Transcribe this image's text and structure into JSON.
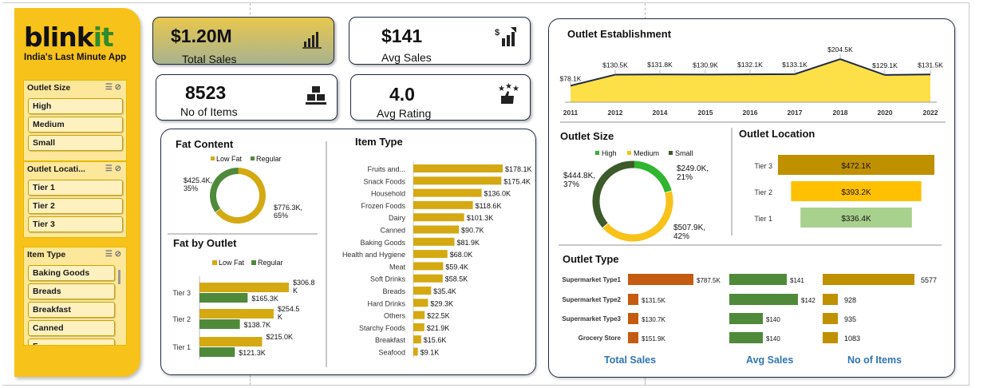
{
  "brand": {
    "name_a": "blink",
    "name_b": "it",
    "tagline": "India's Last Minute App"
  },
  "slicers": {
    "outlet_size": {
      "title": "Outlet Size",
      "items": [
        "High",
        "Medium",
        "Small"
      ]
    },
    "outlet_location": {
      "title": "Outlet Locati...",
      "items": [
        "Tier 1",
        "Tier 2",
        "Tier 3"
      ]
    },
    "item_type": {
      "title": "Item Type",
      "items": [
        "Baking Goods",
        "Breads",
        "Breakfast",
        "Canned",
        "F..."
      ]
    }
  },
  "kpis": {
    "total_sales": {
      "value": "$1.20M",
      "label": "Total Sales"
    },
    "avg_sales": {
      "value": "$141",
      "label": "Avg Sales"
    },
    "no_items": {
      "value": "8523",
      "label": "No of Items"
    },
    "avg_rating": {
      "value": "4.0",
      "label": "Avg Rating"
    }
  },
  "colors": {
    "gold": "#d4a912",
    "green": "#4f8a3a",
    "dark_green": "#3c5a2a",
    "bright_green": "#2fb52f",
    "yellow": "#f7c21a",
    "orange": "#c55a11",
    "olive_gold": "#bf9000",
    "light_green": "#a9d18e",
    "navy": "#1f2a44"
  },
  "chart_data": [
    {
      "type": "pie",
      "title": "Fat Content",
      "legend": [
        "Low Fat",
        "Regular"
      ],
      "values": [
        776.3,
        425.4
      ],
      "labels": [
        "$776.3K,\n65%",
        "$425.4K,\n35%"
      ],
      "label_lines": [
        [
          "$776.3K,",
          "65%"
        ],
        [
          "$425.4K,",
          "35%"
        ]
      ]
    },
    {
      "type": "bar",
      "title": "Fat by Outlet",
      "legend": [
        "Low Fat",
        "Regular"
      ],
      "categories": [
        "Tier 3",
        "Tier 2",
        "Tier 1"
      ],
      "series": [
        {
          "name": "Low Fat",
          "values": [
            306.8,
            254.5,
            215.0
          ],
          "labels": [
            "$306.8\nK",
            "$254.5\nK",
            "$215.0K"
          ],
          "label_lines": [
            [
              "$306.8",
              "K"
            ],
            [
              "$254.5",
              "K"
            ],
            [
              "$215.0K"
            ]
          ]
        },
        {
          "name": "Regular",
          "values": [
            165.3,
            138.7,
            121.3
          ],
          "labels": [
            "$165.3K",
            "$138.7K",
            "$121.3K"
          ]
        }
      ]
    },
    {
      "type": "bar",
      "title": "Item Type",
      "categories": [
        "Fruits and...",
        "Snack Foods",
        "Household",
        "Frozen Foods",
        "Dairy",
        "Canned",
        "Baking Goods",
        "Health and Hygiene",
        "Meat",
        "Soft Drinks",
        "Breads",
        "Hard Drinks",
        "Others",
        "Starchy Foods",
        "Breakfast",
        "Seafood"
      ],
      "values": [
        178.1,
        175.4,
        136.0,
        118.6,
        101.3,
        90.7,
        81.9,
        68.0,
        59.4,
        58.5,
        35.4,
        29.3,
        22.5,
        21.9,
        15.6,
        9.1
      ],
      "labels": [
        "$178.1K",
        "$175.4K",
        "$136.0K",
        "$118.6K",
        "$101.3K",
        "$90.7K",
        "$81.9K",
        "$68.0K",
        "$59.4K",
        "$58.5K",
        "$35.4K",
        "$29.3K",
        "$22.5K",
        "$21.9K",
        "$15.6K",
        "$9.1K"
      ]
    },
    {
      "type": "area",
      "title": "Outlet Establishment",
      "x": [
        "2011",
        "2012",
        "2014",
        "2015",
        "2016",
        "2017",
        "2018",
        "2020",
        "2022"
      ],
      "values": [
        78.1,
        130.5,
        131.8,
        130.9,
        132.1,
        133.1,
        204.5,
        129.1,
        131.5
      ],
      "labels": [
        "$78.1K",
        "$130.5K",
        "$131.8K",
        "$130.9K",
        "$132.1K",
        "$133.1K",
        "$204.5K",
        "$129.1K",
        "$131.5K"
      ]
    },
    {
      "type": "pie",
      "title": "Outlet Size",
      "legend": [
        "High",
        "Medium",
        "Small"
      ],
      "values": [
        249.0,
        507.9,
        444.8
      ],
      "label_lines": [
        [
          "$249.0K,",
          "21%"
        ],
        [
          "$507.9K,",
          "42%"
        ],
        [
          "$444.8K,",
          "37%"
        ]
      ]
    },
    {
      "type": "bar",
      "title": "Outlet Location",
      "categories": [
        "Tier 3",
        "Tier 2",
        "Tier 1"
      ],
      "values": [
        472.1,
        393.2,
        336.4
      ],
      "labels": [
        "$472.1K",
        "$393.2K",
        "$336.4K"
      ]
    },
    {
      "type": "bar",
      "title": "Outlet Type",
      "categories": [
        "Supermarket Type1",
        "Supermarket Type2",
        "Supermarket Type3",
        "Grocery Store"
      ],
      "groups": [
        {
          "name": "Total Sales",
          "values": [
            787.5,
            131.5,
            130.7,
            151.9
          ],
          "labels": [
            "$787.5K",
            "$131.5K",
            "$130.7K",
            "$151.9K"
          ]
        },
        {
          "name": "Avg Sales",
          "values": [
            141,
            142,
            140,
            140
          ],
          "labels": [
            "$141",
            "$142",
            "$140",
            "$140"
          ]
        },
        {
          "name": "No of Items",
          "values": [
            5577,
            928,
            935,
            1083
          ],
          "labels": [
            "5577",
            "928",
            "935",
            "1083"
          ]
        }
      ]
    }
  ]
}
